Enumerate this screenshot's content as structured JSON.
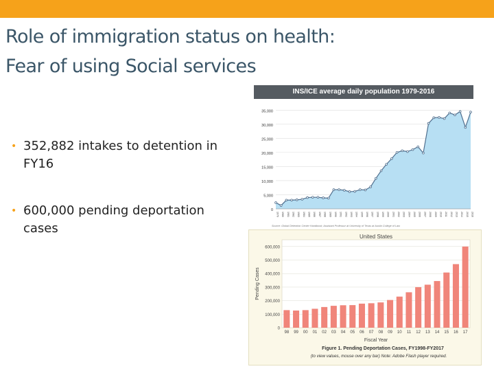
{
  "slide": {
    "title_line1": "Role of immigration status on health:",
    "title_line2": "Fear of using Social services",
    "bullets": [
      "352,882 intakes to detention in FY16",
      "600,000 pending deportation cases"
    ],
    "colors": {
      "accent": "#f6a21a",
      "title": "#3b5668"
    }
  },
  "chart_data": [
    {
      "type": "area",
      "title": "INS/ICE average daily population 1979-2016",
      "x": [
        1979,
        1980,
        1981,
        1982,
        1983,
        1984,
        1985,
        1986,
        1987,
        1988,
        1989,
        1990,
        1991,
        1992,
        1993,
        1994,
        1995,
        1996,
        1997,
        1998,
        1999,
        2000,
        2001,
        2002,
        2003,
        2004,
        2005,
        2006,
        2007,
        2008,
        2009,
        2010,
        2011,
        2012,
        2013,
        2014,
        2015,
        2016
      ],
      "values": [
        2200,
        1200,
        3100,
        3100,
        3200,
        3400,
        4000,
        4100,
        4100,
        3900,
        3800,
        6800,
        6800,
        6600,
        6100,
        6200,
        6800,
        6700,
        7800,
        10800,
        13500,
        15800,
        17800,
        20000,
        20600,
        20300,
        21000,
        22000,
        19800,
        30300,
        32300,
        32400,
        32000,
        34000,
        33300,
        34500,
        28900,
        34300
      ],
      "ylim": [
        0,
        37500
      ],
      "yticks": [
        "35,000",
        "30,000",
        "25,000",
        "20,000",
        "15,000",
        "10,000",
        "5,000",
        "0"
      ],
      "ytick_values": [
        35000,
        30000,
        25000,
        20000,
        15000,
        10000,
        5000,
        0
      ],
      "source": "Source: Global Detention Center Handbook; Assistant Professor at University of Texas at Austin College of Law",
      "colors": {
        "fill": "#b7dff3",
        "line": "#4f6e8d",
        "marker": "#ffffff"
      }
    },
    {
      "type": "bar",
      "title": "United States",
      "categories": [
        "98",
        "99",
        "00",
        "01",
        "02",
        "03",
        "04",
        "05",
        "06",
        "07",
        "08",
        "09",
        "10",
        "11",
        "12",
        "13",
        "14",
        "15",
        "16",
        "17"
      ],
      "values": [
        130000,
        127000,
        130000,
        140000,
        153000,
        162000,
        166000,
        167000,
        178000,
        181000,
        187000,
        205000,
        230000,
        262000,
        300000,
        318000,
        345000,
        408000,
        470000,
        600000
      ],
      "ylim": [
        0,
        650000
      ],
      "yticks": [
        "600,000",
        "500,000",
        "400,000",
        "300,000",
        "200,000",
        "100,000",
        "0"
      ],
      "ytick_values": [
        600000,
        500000,
        400000,
        300000,
        200000,
        100000,
        0
      ],
      "ylabel": "Pending Cases",
      "xlabel": "Fiscal Year",
      "caption_line1": "Figure 1. Pending Deportation Cases, FY1998-FY2017",
      "caption_line2": "(to view values, mouse over any bar) Note: Adobe Flash player required.",
      "colors": {
        "bar": "#f0857a",
        "grid": "#dcdcd0",
        "text": "#444444"
      }
    }
  ]
}
